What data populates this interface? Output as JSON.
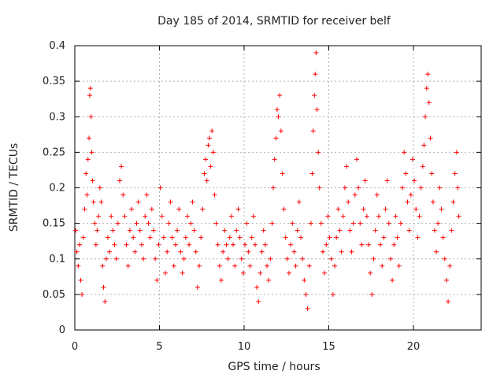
{
  "chart_data": {
    "type": "scatter",
    "title": "Day 185 of 2014, SRMTID for receiver belf",
    "xlabel": "GPS time / hours",
    "ylabel": "SRMTID / TECUs",
    "xlim": [
      0,
      24
    ],
    "ylim": [
      0,
      0.4
    ],
    "xticks": [
      0,
      5,
      10,
      15,
      20
    ],
    "yticks": [
      0,
      0.05,
      0.1,
      0.15,
      0.2,
      0.25,
      0.3,
      0.35,
      0.4
    ],
    "xtick_labels": [
      "0",
      "5",
      "10",
      "15",
      "20"
    ],
    "ytick_labels": [
      "0",
      "0.05",
      "0.1",
      "0.15",
      "0.2",
      "0.25",
      "0.3",
      "0.35",
      "0.4"
    ],
    "grid": true,
    "marker": "+",
    "color": "#ff0000",
    "series": [
      {
        "name": "SRMTID",
        "points": [
          [
            0.05,
            0.14
          ],
          [
            0.12,
            0.11
          ],
          [
            0.2,
            0.09
          ],
          [
            0.28,
            0.12
          ],
          [
            0.35,
            0.07
          ],
          [
            0.42,
            0.05
          ],
          [
            0.5,
            0.13
          ],
          [
            0.58,
            0.17
          ],
          [
            0.66,
            0.22
          ],
          [
            0.72,
            0.19
          ],
          [
            0.78,
            0.24
          ],
          [
            0.84,
            0.27
          ],
          [
            0.88,
            0.33
          ],
          [
            0.92,
            0.34
          ],
          [
            0.96,
            0.3
          ],
          [
            1.0,
            0.25
          ],
          [
            1.05,
            0.21
          ],
          [
            1.1,
            0.18
          ],
          [
            1.18,
            0.15
          ],
          [
            1.25,
            0.12
          ],
          [
            1.32,
            0.14
          ],
          [
            1.4,
            0.16
          ],
          [
            1.48,
            0.2
          ],
          [
            1.56,
            0.18
          ],
          [
            1.64,
            0.09
          ],
          [
            1.7,
            0.06
          ],
          [
            1.78,
            0.04
          ],
          [
            1.86,
            0.1
          ],
          [
            1.95,
            0.13
          ],
          [
            2.05,
            0.11
          ],
          [
            2.15,
            0.16
          ],
          [
            2.25,
            0.14
          ],
          [
            2.35,
            0.12
          ],
          [
            2.45,
            0.1
          ],
          [
            2.55,
            0.15
          ],
          [
            2.65,
            0.21
          ],
          [
            2.75,
            0.23
          ],
          [
            2.85,
            0.19
          ],
          [
            2.95,
            0.16
          ],
          [
            3.05,
            0.12
          ],
          [
            3.15,
            0.09
          ],
          [
            3.25,
            0.14
          ],
          [
            3.35,
            0.17
          ],
          [
            3.45,
            0.13
          ],
          [
            3.55,
            0.11
          ],
          [
            3.65,
            0.15
          ],
          [
            3.75,
            0.18
          ],
          [
            3.85,
            0.14
          ],
          [
            3.95,
            0.12
          ],
          [
            4.05,
            0.1
          ],
          [
            4.15,
            0.16
          ],
          [
            4.25,
            0.19
          ],
          [
            4.35,
            0.15
          ],
          [
            4.45,
            0.13
          ],
          [
            4.55,
            0.17
          ],
          [
            4.65,
            0.14
          ],
          [
            4.75,
            0.1
          ],
          [
            4.85,
            0.07
          ],
          [
            4.95,
            0.12
          ],
          [
            5.05,
            0.2
          ],
          [
            5.15,
            0.16
          ],
          [
            5.25,
            0.13
          ],
          [
            5.35,
            0.08
          ],
          [
            5.45,
            0.11
          ],
          [
            5.55,
            0.15
          ],
          [
            5.65,
            0.18
          ],
          [
            5.75,
            0.13
          ],
          [
            5.85,
            0.09
          ],
          [
            5.95,
            0.12
          ],
          [
            6.05,
            0.14
          ],
          [
            6.15,
            0.17
          ],
          [
            6.25,
            0.11
          ],
          [
            6.35,
            0.08
          ],
          [
            6.45,
            0.1
          ],
          [
            6.55,
            0.13
          ],
          [
            6.65,
            0.16
          ],
          [
            6.75,
            0.12
          ],
          [
            6.85,
            0.15
          ],
          [
            6.95,
            0.18
          ],
          [
            7.05,
            0.14
          ],
          [
            7.15,
            0.11
          ],
          [
            7.25,
            0.06
          ],
          [
            7.35,
            0.09
          ],
          [
            7.45,
            0.13
          ],
          [
            7.55,
            0.17
          ],
          [
            7.65,
            0.22
          ],
          [
            7.72,
            0.24
          ],
          [
            7.8,
            0.21
          ],
          [
            7.88,
            0.26
          ],
          [
            7.95,
            0.27
          ],
          [
            8.02,
            0.23
          ],
          [
            8.1,
            0.28
          ],
          [
            8.18,
            0.25
          ],
          [
            8.26,
            0.19
          ],
          [
            8.35,
            0.15
          ],
          [
            8.45,
            0.12
          ],
          [
            8.55,
            0.09
          ],
          [
            8.65,
            0.07
          ],
          [
            8.75,
            0.11
          ],
          [
            8.85,
            0.14
          ],
          [
            8.95,
            0.12
          ],
          [
            9.05,
            0.1
          ],
          [
            9.15,
            0.13
          ],
          [
            9.25,
            0.16
          ],
          [
            9.35,
            0.12
          ],
          [
            9.45,
            0.09
          ],
          [
            9.55,
            0.14
          ],
          [
            9.65,
            0.17
          ],
          [
            9.75,
            0.13
          ],
          [
            9.85,
            0.1
          ],
          [
            9.95,
            0.08
          ],
          [
            10.05,
            0.12
          ],
          [
            10.15,
            0.15
          ],
          [
            10.25,
            0.11
          ],
          [
            10.35,
            0.09
          ],
          [
            10.45,
            0.13
          ],
          [
            10.55,
            0.16
          ],
          [
            10.65,
            0.12
          ],
          [
            10.75,
            0.06
          ],
          [
            10.85,
            0.04
          ],
          [
            10.95,
            0.08
          ],
          [
            11.05,
            0.11
          ],
          [
            11.15,
            0.14
          ],
          [
            11.25,
            0.12
          ],
          [
            11.35,
            0.09
          ],
          [
            11.45,
            0.07
          ],
          [
            11.55,
            0.1
          ],
          [
            11.65,
            0.15
          ],
          [
            11.72,
            0.2
          ],
          [
            11.8,
            0.24
          ],
          [
            11.88,
            0.27
          ],
          [
            11.95,
            0.31
          ],
          [
            12.02,
            0.3
          ],
          [
            12.1,
            0.33
          ],
          [
            12.18,
            0.28
          ],
          [
            12.26,
            0.22
          ],
          [
            12.35,
            0.17
          ],
          [
            12.45,
            0.13
          ],
          [
            12.55,
            0.1
          ],
          [
            12.65,
            0.08
          ],
          [
            12.75,
            0.12
          ],
          [
            12.85,
            0.15
          ],
          [
            12.95,
            0.11
          ],
          [
            13.05,
            0.09
          ],
          [
            13.15,
            0.14
          ],
          [
            13.25,
            0.18
          ],
          [
            13.35,
            0.13
          ],
          [
            13.45,
            0.1
          ],
          [
            13.55,
            0.07
          ],
          [
            13.65,
            0.05
          ],
          [
            13.75,
            0.03
          ],
          [
            13.85,
            0.09
          ],
          [
            13.95,
            0.15
          ],
          [
            14.02,
            0.22
          ],
          [
            14.08,
            0.28
          ],
          [
            14.15,
            0.33
          ],
          [
            14.2,
            0.36
          ],
          [
            14.25,
            0.39
          ],
          [
            14.3,
            0.31
          ],
          [
            14.38,
            0.25
          ],
          [
            14.45,
            0.2
          ],
          [
            14.55,
            0.15
          ],
          [
            14.65,
            0.11
          ],
          [
            14.75,
            0.08
          ],
          [
            14.85,
            0.12
          ],
          [
            14.95,
            0.16
          ],
          [
            15.05,
            0.13
          ],
          [
            15.15,
            0.1
          ],
          [
            15.25,
            0.05
          ],
          [
            15.35,
            0.09
          ],
          [
            15.45,
            0.13
          ],
          [
            15.55,
            0.17
          ],
          [
            15.65,
            0.14
          ],
          [
            15.75,
            0.11
          ],
          [
            15.85,
            0.16
          ],
          [
            15.95,
            0.2
          ],
          [
            16.05,
            0.23
          ],
          [
            16.15,
            0.18
          ],
          [
            16.25,
            0.14
          ],
          [
            16.35,
            0.11
          ],
          [
            16.45,
            0.15
          ],
          [
            16.55,
            0.19
          ],
          [
            16.65,
            0.24
          ],
          [
            16.75,
            0.2
          ],
          [
            16.85,
            0.15
          ],
          [
            16.95,
            0.12
          ],
          [
            17.05,
            0.17
          ],
          [
            17.15,
            0.21
          ],
          [
            17.25,
            0.16
          ],
          [
            17.35,
            0.12
          ],
          [
            17.45,
            0.08
          ],
          [
            17.55,
            0.05
          ],
          [
            17.65,
            0.1
          ],
          [
            17.75,
            0.14
          ],
          [
            17.85,
            0.19
          ],
          [
            17.95,
            0.16
          ],
          [
            18.05,
            0.12
          ],
          [
            18.15,
            0.09
          ],
          [
            18.25,
            0.13
          ],
          [
            18.35,
            0.17
          ],
          [
            18.45,
            0.21
          ],
          [
            18.55,
            0.15
          ],
          [
            18.65,
            0.1
          ],
          [
            18.75,
            0.07
          ],
          [
            18.85,
            0.12
          ],
          [
            18.95,
            0.16
          ],
          [
            19.05,
            0.13
          ],
          [
            19.15,
            0.09
          ],
          [
            19.25,
            0.15
          ],
          [
            19.35,
            0.2
          ],
          [
            19.45,
            0.25
          ],
          [
            19.55,
            0.22
          ],
          [
            19.65,
            0.18
          ],
          [
            19.75,
            0.14
          ],
          [
            19.85,
            0.19
          ],
          [
            19.95,
            0.24
          ],
          [
            20.05,
            0.21
          ],
          [
            20.15,
            0.17
          ],
          [
            20.25,
            0.13
          ],
          [
            20.35,
            0.16
          ],
          [
            20.45,
            0.2
          ],
          [
            20.55,
            0.23
          ],
          [
            20.62,
            0.26
          ],
          [
            20.7,
            0.3
          ],
          [
            20.78,
            0.34
          ],
          [
            20.85,
            0.36
          ],
          [
            20.92,
            0.32
          ],
          [
            21.0,
            0.27
          ],
          [
            21.08,
            0.22
          ],
          [
            21.16,
            0.18
          ],
          [
            21.25,
            0.14
          ],
          [
            21.35,
            0.11
          ],
          [
            21.45,
            0.15
          ],
          [
            21.55,
            0.2
          ],
          [
            21.65,
            0.17
          ],
          [
            21.75,
            0.13
          ],
          [
            21.85,
            0.1
          ],
          [
            21.95,
            0.07
          ],
          [
            22.05,
            0.04
          ],
          [
            22.15,
            0.09
          ],
          [
            22.25,
            0.14
          ],
          [
            22.35,
            0.18
          ],
          [
            22.45,
            0.22
          ],
          [
            22.55,
            0.25
          ],
          [
            22.62,
            0.2
          ],
          [
            22.68,
            0.16
          ]
        ]
      }
    ]
  }
}
